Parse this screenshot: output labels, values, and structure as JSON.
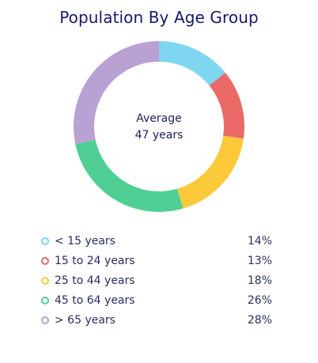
{
  "chart_data": {
    "type": "pie",
    "title": "Population By Age Group",
    "center_label": {
      "line1": "Average",
      "line2": "47 years"
    },
    "categories": [
      "< 15 years",
      "15 to 24 years",
      "25 to 44 years",
      "45 to 64 years",
      "> 65 years"
    ],
    "values": [
      14,
      13,
      18,
      26,
      28
    ],
    "value_labels": [
      "14%",
      "13%",
      "18%",
      "26%",
      "28%"
    ],
    "colors": [
      "#7fd6f0",
      "#ea6a68",
      "#fcc93a",
      "#4fcf93",
      "#b9a1d3"
    ],
    "legend_position": "bottom",
    "style": "donut"
  }
}
